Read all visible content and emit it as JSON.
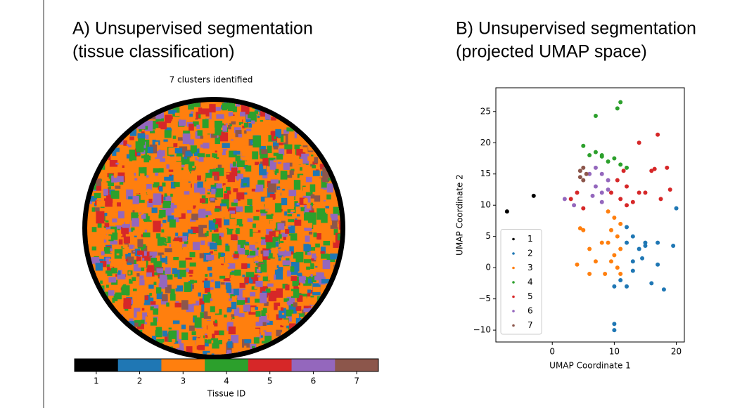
{
  "chart_data": [
    {
      "type": "segmentation",
      "heading": [
        "A) Unsupervised segmentation",
        "(tissue classification)"
      ],
      "title": "7 clusters identified",
      "colorbar_label": "Tissue ID",
      "categories": [
        "1",
        "2",
        "3",
        "4",
        "5",
        "6",
        "7"
      ],
      "colors": [
        "#000000",
        "#1f77b4",
        "#ff7f0e",
        "#2ca02c",
        "#d62728",
        "#9467bd",
        "#8c564b"
      ]
    },
    {
      "type": "scatter",
      "heading": [
        "B) Unsupervised segmentation",
        "(projected UMAP space)"
      ],
      "xlabel": "UMAP Coordinate 1",
      "ylabel": "UMAP Coordinate 2",
      "xlim": [
        -9.1,
        21.3
      ],
      "ylim": [
        -11.9,
        28.8
      ],
      "xticks": [
        0,
        10,
        20
      ],
      "yticks": [
        {
          "value": -10,
          "label": "−10"
        },
        {
          "value": -5,
          "label": "−5"
        },
        0,
        5,
        10,
        15,
        20,
        25
      ],
      "legend": "lower left",
      "series": [
        {
          "name": "1",
          "color": "#000000",
          "x": [
            -7.3,
            -3
          ],
          "y": [
            9,
            11.5
          ]
        },
        {
          "name": "2",
          "color": "#1f77b4",
          "x": [
            12,
            13,
            14,
            15,
            14.5,
            13,
            11,
            10,
            12,
            16,
            18,
            17,
            19.5,
            20,
            17,
            10,
            10,
            15,
            12,
            13
          ],
          "y": [
            4,
            5,
            3,
            4,
            1.5,
            -0.5,
            -2,
            -3,
            -3,
            -2.5,
            -3.5,
            0.5,
            3.5,
            9.5,
            4,
            -10,
            -9,
            3.5,
            6.5,
            1
          ]
        },
        {
          "name": "3",
          "color": "#ff7f0e",
          "x": [
            9,
            10,
            11,
            9.5,
            10.5,
            9,
            11,
            10,
            9.5,
            10.5,
            11,
            8.5,
            5,
            4.5,
            8,
            6,
            7,
            6,
            4
          ],
          "y": [
            9,
            8,
            7,
            6,
            5,
            4,
            3,
            2,
            1,
            0,
            -1,
            -1,
            6,
            6.3,
            4,
            3,
            1,
            -1,
            0.5
          ]
        },
        {
          "name": "4",
          "color": "#2ca02c",
          "x": [
            6,
            7,
            8,
            9,
            10,
            11,
            12,
            5,
            11,
            10.5,
            7,
            8
          ],
          "y": [
            18,
            18.5,
            18,
            17,
            17.5,
            16.5,
            16,
            19.5,
            26.5,
            25.5,
            24.3,
            17.8
          ]
        },
        {
          "name": "5",
          "color": "#d62728",
          "x": [
            11.5,
            12,
            10.5,
            9.5,
            11,
            12,
            13,
            14,
            16,
            17,
            18.5,
            19,
            17.5,
            3,
            4,
            5,
            14,
            16.5,
            15
          ],
          "y": [
            15.5,
            13,
            14,
            12,
            11,
            10,
            10.5,
            12,
            15.5,
            21.3,
            16,
            12.5,
            11,
            11,
            12,
            9.5,
            20,
            15.8,
            12
          ]
        },
        {
          "name": "6",
          "color": "#9467bd",
          "x": [
            6,
            7,
            8,
            9,
            9,
            8,
            7,
            6.5,
            8,
            2,
            3.5
          ],
          "y": [
            15,
            16,
            15,
            14,
            12.5,
            12,
            13,
            11.5,
            10.5,
            11,
            10
          ]
        },
        {
          "name": "7",
          "color": "#8c564b",
          "x": [
            5,
            5,
            5.5,
            4.5,
            4.5
          ],
          "y": [
            16,
            14,
            15,
            14.5,
            15.5
          ]
        }
      ]
    }
  ]
}
